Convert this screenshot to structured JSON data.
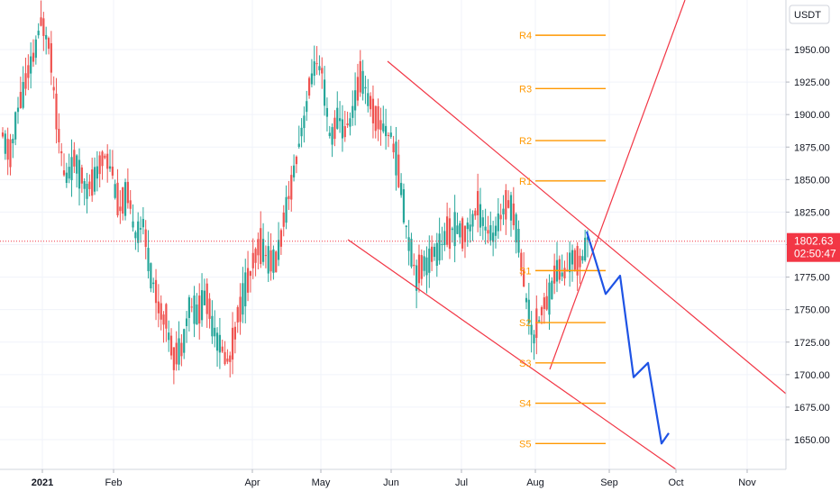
{
  "chart_data": {
    "type": "candlestick",
    "axis": {
      "currency_label": "USDT",
      "y_ticks": [
        "1950.00",
        "1925.00",
        "1900.00",
        "1875.00",
        "1850.00",
        "1825.00",
        "1800.00",
        "1775.00",
        "1750.00",
        "1725.00",
        "1700.00",
        "1675.00",
        "1650.00"
      ],
      "x_ticks": [
        "2021",
        "Feb",
        "Apr",
        "May",
        "Jun",
        "Jul",
        "Aug",
        "Sep",
        "Oct",
        "Nov"
      ],
      "ylim": [
        1622,
        1985
      ]
    },
    "last_price": {
      "value": 1802.63,
      "price_text": "1802.63",
      "countdown_text": "02:50:47",
      "color": "#f23645"
    },
    "pivot_levels": [
      {
        "label": "R4",
        "value": 1961
      },
      {
        "label": "R3",
        "value": 1920
      },
      {
        "label": "R2",
        "value": 1880
      },
      {
        "label": "R1",
        "value": 1849
      },
      {
        "label": "S1",
        "value": 1780
      },
      {
        "label": "S2",
        "value": 1740
      },
      {
        "label": "S3",
        "value": 1709
      },
      {
        "label": "S4",
        "value": 1678
      },
      {
        "label": "S5",
        "value": 1647
      }
    ],
    "projection_path_prices": [
      1810,
      1762,
      1776,
      1698,
      1709,
      1647,
      1655
    ],
    "series": [
      {
        "name": "",
        "ohlc_daily_sample": [
          [
            1870,
            1888,
            1855,
            1882
          ],
          [
            1882,
            1895,
            1862,
            1868
          ],
          [
            1868,
            1910,
            1860,
            1905
          ],
          [
            1905,
            1935,
            1896,
            1925
          ],
          [
            1925,
            1960,
            1915,
            1945
          ],
          [
            1945,
            1985,
            1930,
            1972
          ],
          [
            1972,
            1990,
            1940,
            1955
          ],
          [
            1955,
            1962,
            1885,
            1895
          ],
          [
            1895,
            1900,
            1835,
            1848
          ],
          [
            1848,
            1872,
            1838,
            1865
          ],
          [
            1865,
            1880,
            1848,
            1855
          ],
          [
            1855,
            1868,
            1835,
            1842
          ],
          [
            1842,
            1860,
            1832,
            1852
          ],
          [
            1852,
            1875,
            1845,
            1870
          ],
          [
            1870,
            1880,
            1850,
            1858
          ],
          [
            1858,
            1862,
            1818,
            1826
          ],
          [
            1826,
            1845,
            1815,
            1838
          ],
          [
            1838,
            1845,
            1800,
            1810
          ],
          [
            1810,
            1822,
            1790,
            1815
          ],
          [
            1815,
            1820,
            1775,
            1780
          ],
          [
            1780,
            1790,
            1740,
            1752
          ],
          [
            1752,
            1765,
            1728,
            1740
          ],
          [
            1740,
            1748,
            1705,
            1712
          ],
          [
            1712,
            1730,
            1690,
            1722
          ],
          [
            1722,
            1760,
            1715,
            1755
          ],
          [
            1755,
            1770,
            1738,
            1746
          ],
          [
            1746,
            1768,
            1740,
            1762
          ],
          [
            1762,
            1770,
            1730,
            1738
          ],
          [
            1738,
            1745,
            1712,
            1720
          ],
          [
            1720,
            1728,
            1690,
            1708
          ],
          [
            1708,
            1745,
            1700,
            1740
          ],
          [
            1740,
            1770,
            1735,
            1764
          ],
          [
            1764,
            1790,
            1755,
            1782
          ],
          [
            1782,
            1810,
            1775,
            1800
          ],
          [
            1800,
            1808,
            1782,
            1790
          ],
          [
            1790,
            1798,
            1775,
            1785
          ],
          [
            1785,
            1820,
            1780,
            1815
          ],
          [
            1815,
            1850,
            1805,
            1845
          ],
          [
            1845,
            1885,
            1835,
            1878
          ],
          [
            1878,
            1915,
            1870,
            1908
          ],
          [
            1908,
            1950,
            1895,
            1940
          ],
          [
            1940,
            1985,
            1915,
            1930
          ],
          [
            1930,
            1935,
            1870,
            1880
          ],
          [
            1880,
            1905,
            1862,
            1898
          ],
          [
            1898,
            1920,
            1880,
            1886
          ],
          [
            1886,
            1912,
            1878,
            1905
          ],
          [
            1905,
            1940,
            1900,
            1932
          ],
          [
            1932,
            1938,
            1900,
            1910
          ],
          [
            1910,
            1918,
            1880,
            1895
          ],
          [
            1895,
            1910,
            1878,
            1890
          ],
          [
            1890,
            1900,
            1868,
            1880
          ],
          [
            1880,
            1885,
            1840,
            1848
          ],
          [
            1848,
            1852,
            1795,
            1805
          ],
          [
            1805,
            1812,
            1765,
            1778
          ],
          [
            1778,
            1792,
            1762,
            1785
          ],
          [
            1785,
            1800,
            1770,
            1790
          ],
          [
            1790,
            1810,
            1780,
            1798
          ],
          [
            1798,
            1815,
            1785,
            1808
          ],
          [
            1808,
            1825,
            1795,
            1812
          ],
          [
            1812,
            1830,
            1800,
            1808
          ],
          [
            1808,
            1818,
            1795,
            1815
          ],
          [
            1815,
            1838,
            1805,
            1830
          ],
          [
            1830,
            1842,
            1808,
            1812
          ],
          [
            1812,
            1820,
            1795,
            1805
          ],
          [
            1805,
            1830,
            1800,
            1825
          ],
          [
            1825,
            1842,
            1815,
            1835
          ],
          [
            1835,
            1840,
            1805,
            1810
          ],
          [
            1810,
            1812,
            1760,
            1765
          ],
          [
            1765,
            1770,
            1715,
            1728
          ],
          [
            1728,
            1755,
            1710,
            1748
          ],
          [
            1748,
            1770,
            1738,
            1758
          ],
          [
            1758,
            1790,
            1750,
            1782
          ],
          [
            1782,
            1792,
            1770,
            1776
          ],
          [
            1776,
            1795,
            1770,
            1790
          ],
          [
            1790,
            1808,
            1780,
            1786
          ],
          [
            1786,
            1812,
            1782,
            1805
          ]
        ]
      }
    ]
  }
}
